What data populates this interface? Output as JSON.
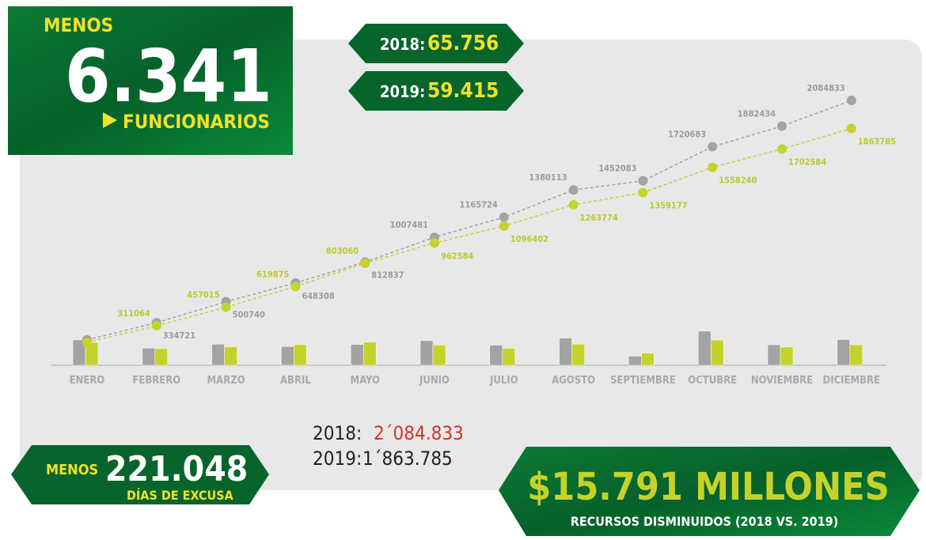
{
  "badge": {
    "prefix": "MENOS",
    "number": "6.341",
    "suffix": "FUNCIONARIOS"
  },
  "banners": [
    {
      "year": "2018:",
      "value": "65.756"
    },
    {
      "year": "2019:",
      "value": "59.415"
    }
  ],
  "totals": [
    {
      "year": "2018:",
      "value": "2´084.833"
    },
    {
      "year": "2019:",
      "value": "1´863.785"
    }
  ],
  "excusa": {
    "prefix": "MENOS",
    "number": "221.048",
    "suffix": "DÍAS DE EXCUSA"
  },
  "recursos": {
    "amount": "$15.791 MILLONES",
    "caption": "RECURSOS DISMINUIDOS (2018 VS. 2019)"
  },
  "chart_data": {
    "type": "line",
    "categories": [
      "ENERO",
      "FEBRERO",
      "MARZO",
      "ABRIL",
      "MAYO",
      "JUNIO",
      "JULIO",
      "AGOSTO",
      "SEPTIEMBRE",
      "OCTUBRE",
      "NOVIEMBRE",
      "DICIEMBRE"
    ],
    "ylim": [
      0,
      2200000
    ],
    "series": [
      {
        "color": "#a3a3a3",
        "values": [
          200000,
          334721,
          500740,
          648308,
          812837,
          1007481,
          1165724,
          1380113,
          1452083,
          1720683,
          1882434,
          2084833
        ],
        "value_labels": [
          null,
          "334721",
          "500740",
          "648308",
          "812837",
          "1007481",
          "1165724",
          "1380113",
          "1452083",
          "1720683",
          "1882434",
          "2084833"
        ]
      },
      {
        "color": "#c5d22c",
        "values": [
          180000,
          311064,
          457015,
          619875,
          803060,
          962584,
          1096402,
          1263774,
          1359177,
          1558240,
          1702584,
          1863785
        ],
        "value_labels": [
          null,
          "311064",
          "457015",
          "619875",
          "803060",
          "962584",
          "1096402",
          "1263774",
          "1359177",
          "1558240",
          "1702584",
          "1863785"
        ]
      }
    ],
    "bars": [
      {
        "color": "#a3a3a3",
        "values": [
          200000,
          134721,
          166019,
          147568,
          164529,
          194644,
          158243,
          214389,
          71970,
          268600,
          161751,
          202399
        ]
      },
      {
        "color": "#c5d22c",
        "values": [
          180000,
          131064,
          145951,
          162860,
          183185,
          159524,
          133818,
          167372,
          95403,
          199063,
          144344,
          161201
        ]
      }
    ]
  }
}
